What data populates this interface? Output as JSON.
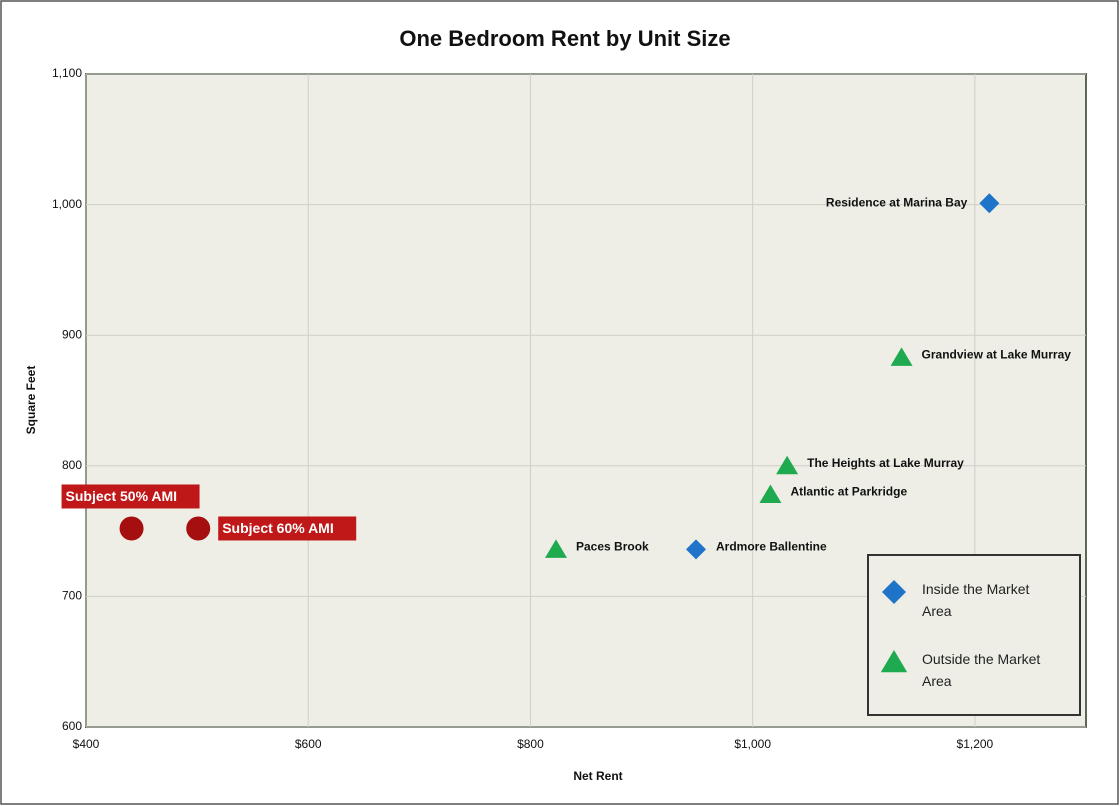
{
  "chart_data": {
    "type": "scatter",
    "title": "One Bedroom Rent by Unit Size",
    "x_label": "Net Rent",
    "y_label": "Square Feet",
    "xlim": [
      400,
      1300
    ],
    "ylim": [
      600,
      1100
    ],
    "xticks": [
      {
        "value": 400,
        "label": "$400"
      },
      {
        "value": 600,
        "label": "$600"
      },
      {
        "value": 800,
        "label": "$800"
      },
      {
        "value": 1000,
        "label": "$1,000"
      },
      {
        "value": 1200,
        "label": "$1,200"
      }
    ],
    "yticks": [
      600,
      700,
      800,
      900,
      {
        "value": 1000,
        "label": "1,000"
      },
      {
        "value": 1100,
        "label": "1,100"
      }
    ],
    "grid": true,
    "legend": "lower right",
    "series": [
      {
        "name": "Inside the Market Area",
        "color": "#1f73c8",
        "marker": "diamond",
        "x": [
          1213,
          949
        ],
        "values": [
          1001,
          736
        ],
        "labels": [
          "Residence at Marina Bay",
          "Ardmore Ballentine"
        ]
      },
      {
        "name": "Outside the Market Area",
        "color": "#1faa4f",
        "marker": "triangle",
        "x": [
          1134,
          1031,
          1016,
          823
        ],
        "values": [
          883,
          800,
          778,
          736
        ],
        "labels": [
          "Grandview at Lake Murray",
          "The Heights at Lake Murray",
          "Atlantic at Parkridge",
          "Paces Brook"
        ]
      },
      {
        "color": "#a50f0f",
        "marker": "circle",
        "x": [
          441,
          501
        ],
        "values": [
          752,
          752
        ],
        "labels": [
          "Subject 50% AMI",
          "Subject 60% AMI"
        ]
      }
    ]
  }
}
